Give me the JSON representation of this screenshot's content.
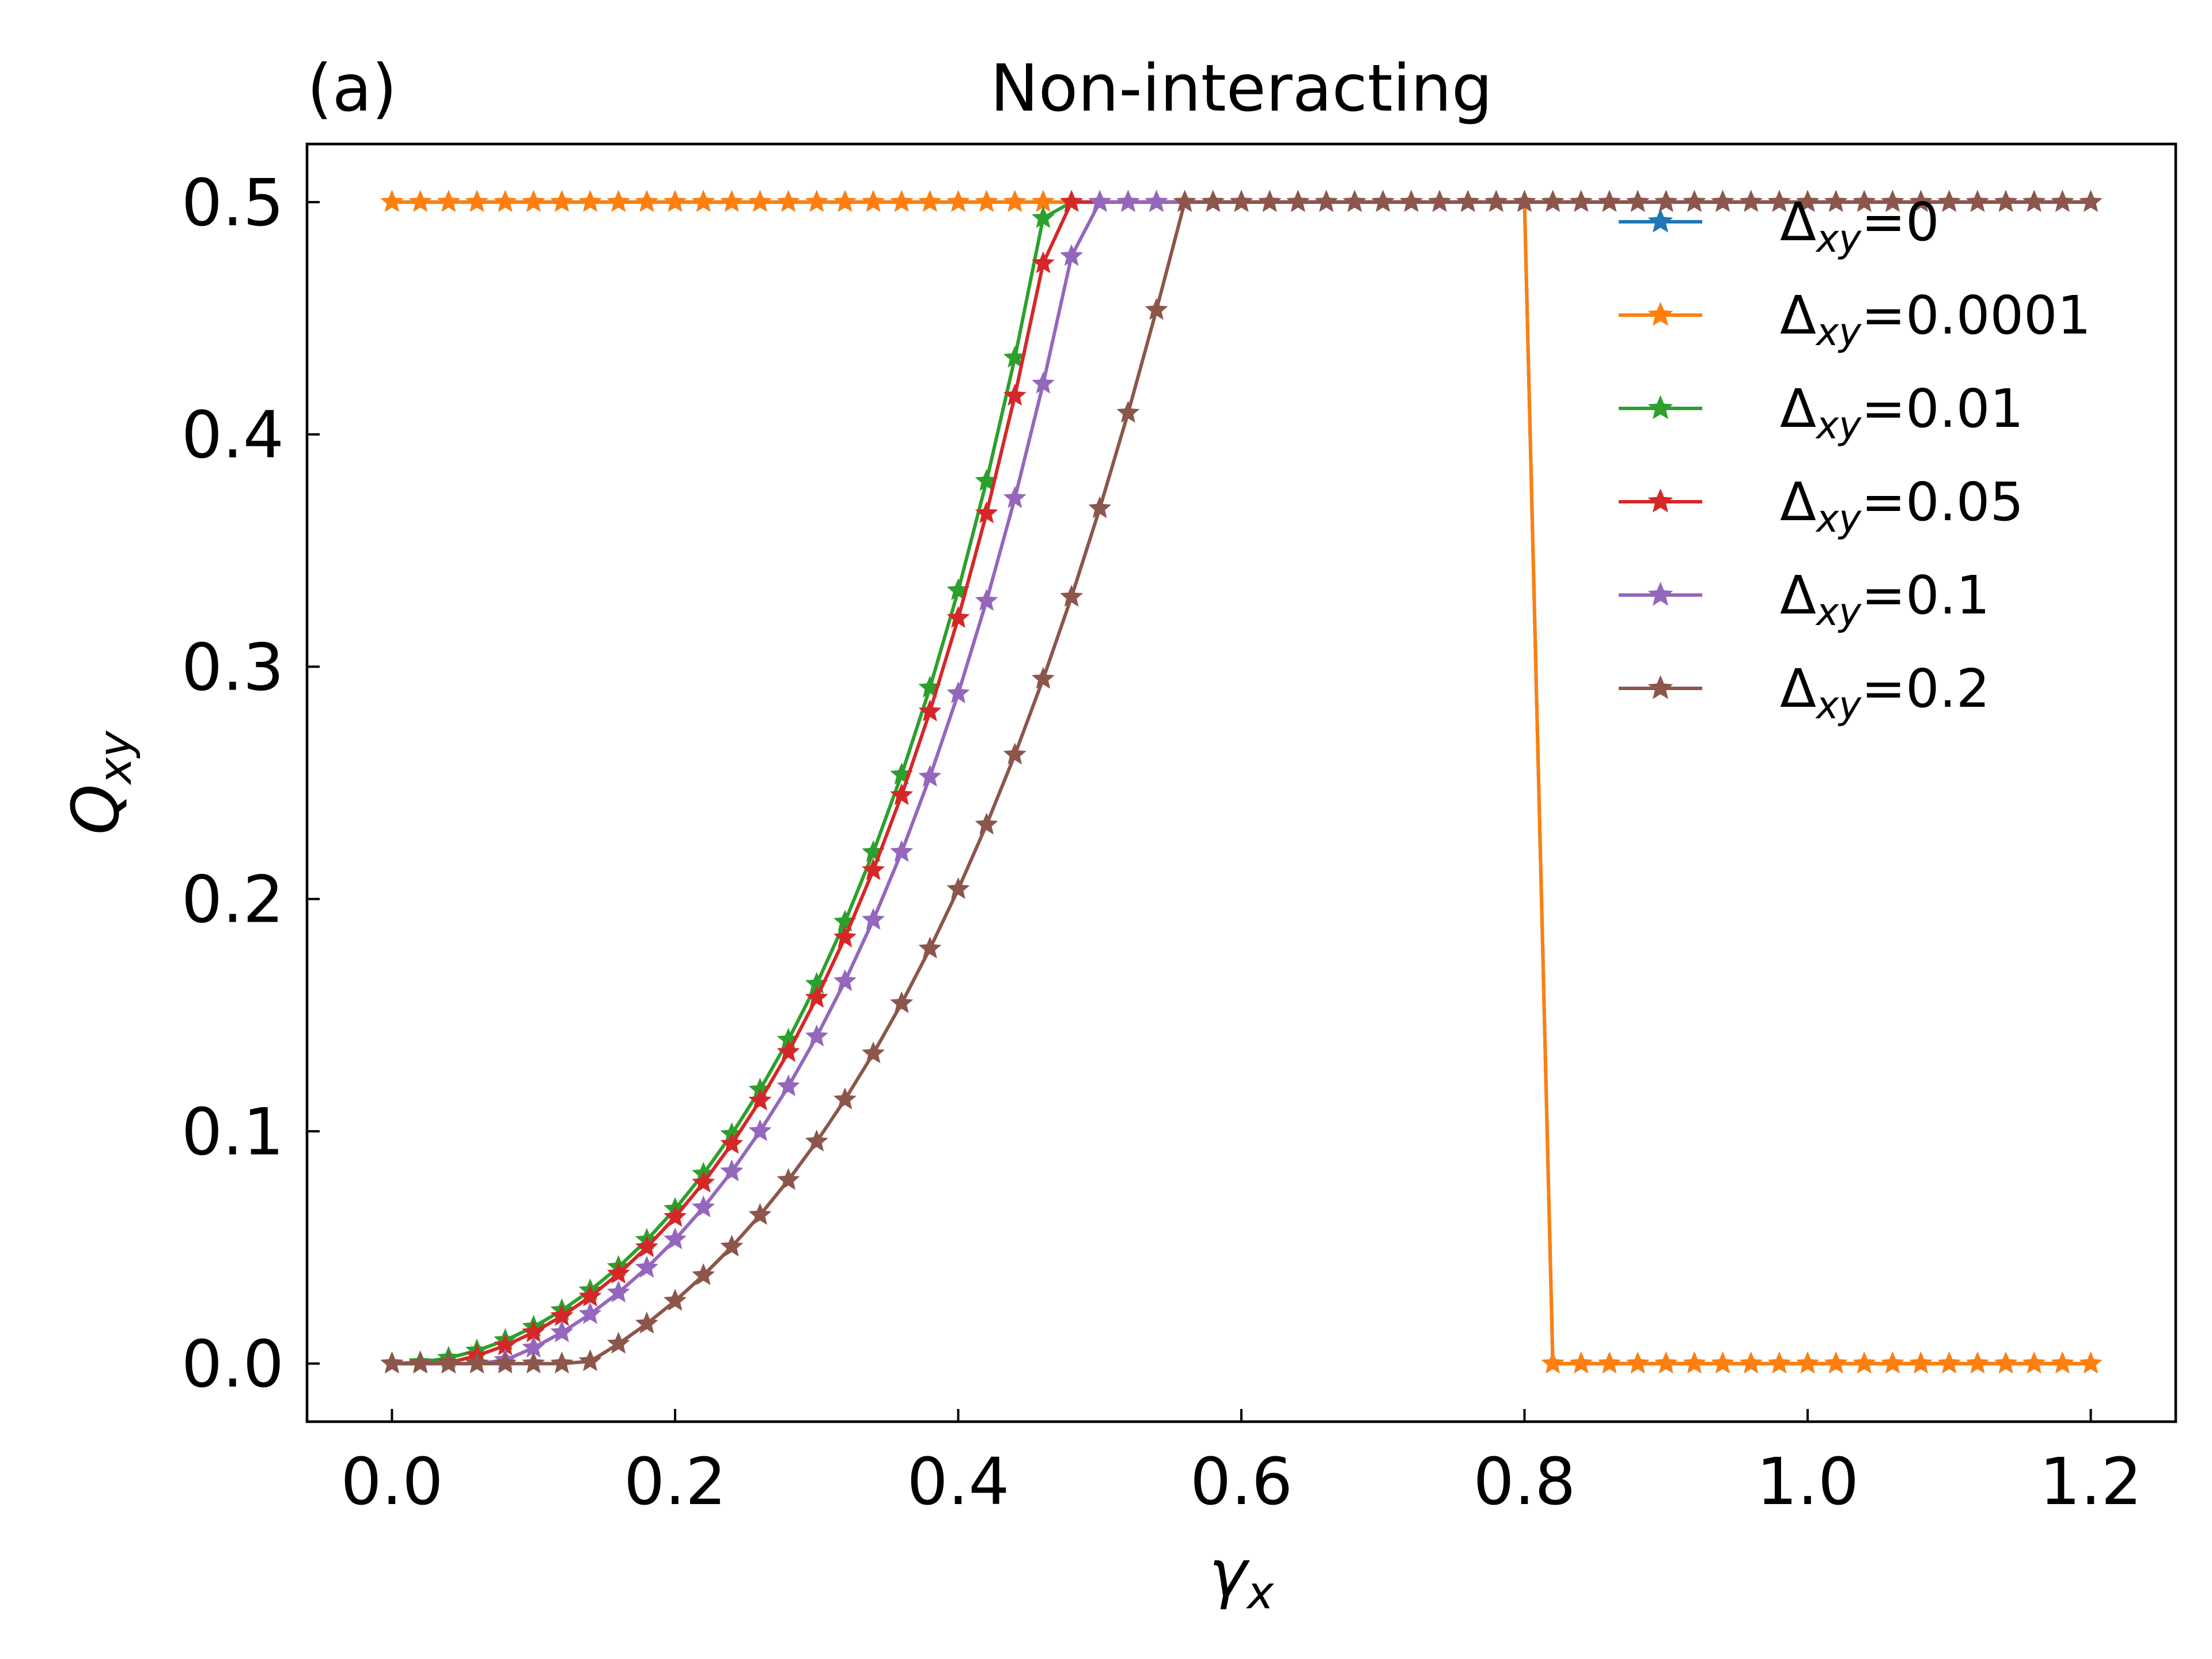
{
  "chart_data": {
    "type": "line",
    "panel_label": "(a)",
    "title": "Non-interacting",
    "xlabel_main": "γ",
    "xlabel_sub": "x",
    "ylabel_main": "Q",
    "ylabel_sub": "xy",
    "xlim": [
      -0.06,
      1.26
    ],
    "ylim": [
      -0.025,
      0.525
    ],
    "xticks": [
      0.0,
      0.2,
      0.4,
      0.6,
      0.8,
      1.0,
      1.2
    ],
    "xtick_labels": [
      "0.0",
      "0.2",
      "0.4",
      "0.6",
      "0.8",
      "1.0",
      "1.2"
    ],
    "yticks": [
      0.0,
      0.1,
      0.2,
      0.3,
      0.4,
      0.5
    ],
    "ytick_labels": [
      "0.0",
      "0.1",
      "0.2",
      "0.3",
      "0.4",
      "0.5"
    ],
    "marker": "star",
    "x": [
      0.0,
      0.02,
      0.04,
      0.06,
      0.08,
      0.1,
      0.12,
      0.14,
      0.16,
      0.18,
      0.2,
      0.22,
      0.24,
      0.26,
      0.28,
      0.3,
      0.32,
      0.34,
      0.36,
      0.38,
      0.4,
      0.42,
      0.44,
      0.46,
      0.48,
      0.5,
      0.52,
      0.54,
      0.56,
      0.58,
      0.6,
      0.62,
      0.64,
      0.66,
      0.68,
      0.7,
      0.72,
      0.74,
      0.76,
      0.78,
      0.8,
      0.82,
      0.84,
      0.86,
      0.88,
      0.9,
      0.92,
      0.94,
      0.96,
      0.98,
      1.0,
      1.02,
      1.04,
      1.06,
      1.08,
      1.1,
      1.12,
      1.14,
      1.16,
      1.18,
      1.2
    ],
    "legend_position": "upper-right",
    "series": [
      {
        "name": "Δxy=0",
        "legend_prefix": "Δ",
        "legend_sub": "xy",
        "legend_suffix": "=0",
        "color": "#1f77b4",
        "kind": "step",
        "gamma_c": 0.8,
        "high": 0.5,
        "low": 0.0
      },
      {
        "name": "Δxy=0.0001",
        "legend_prefix": "Δ",
        "legend_sub": "xy",
        "legend_suffix": "=0.0001",
        "color": "#ff7f0e",
        "kind": "step",
        "gamma_c": 0.8,
        "high": 0.5,
        "low": 0.0
      },
      {
        "name": "Δxy=0.01",
        "legend_prefix": "Δ",
        "legend_sub": "xy",
        "legend_suffix": "=0.01",
        "color": "#2ca02c",
        "kind": "smooth",
        "delta": 0.01
      },
      {
        "name": "Δxy=0.05",
        "legend_prefix": "Δ",
        "legend_sub": "xy",
        "legend_suffix": "=0.05",
        "color": "#d62728",
        "kind": "smooth",
        "delta": 0.05
      },
      {
        "name": "Δxy=0.1",
        "legend_prefix": "Δ",
        "legend_sub": "xy",
        "legend_suffix": "=0.1",
        "color": "#9467bd",
        "kind": "smooth",
        "delta": 0.1
      },
      {
        "name": "Δxy=0.2",
        "legend_prefix": "Δ",
        "legend_sub": "xy",
        "legend_suffix": "=0.2",
        "color": "#8c564b",
        "kind": "smooth",
        "delta": 0.2
      }
    ]
  }
}
